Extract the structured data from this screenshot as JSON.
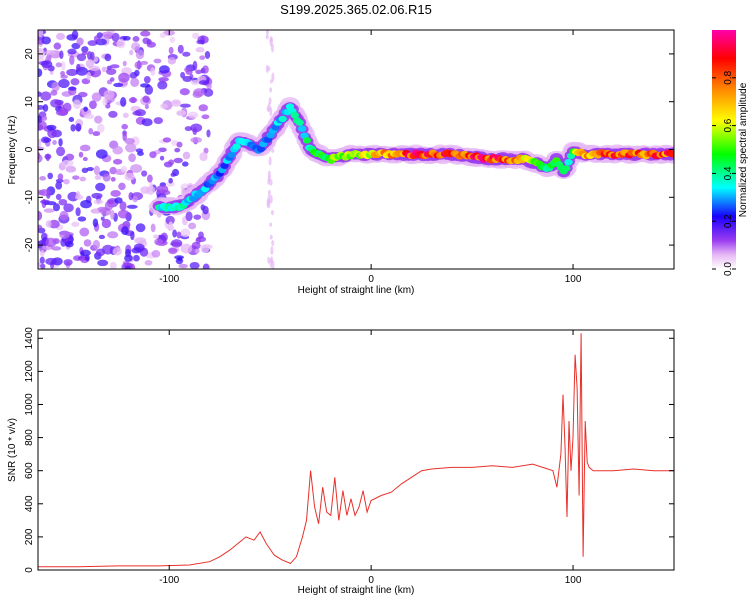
{
  "chart_data": [
    {
      "type": "heatmap",
      "title": "S199.2025.365.02.06.R15",
      "xlabel": "Height of straight line (km)",
      "ylabel": "Frequency (Hz)",
      "xlim": [
        -165,
        150
      ],
      "ylim": [
        -25,
        25
      ],
      "xticks": [
        -100,
        0,
        100
      ],
      "yticks": [
        -20,
        -10,
        0,
        10,
        20
      ],
      "colorbar": {
        "label": "Normalized spectral amplitude",
        "range": [
          0,
          1
        ],
        "ticks": [
          "0.0",
          "0.2",
          "0.4",
          "0.6",
          "0.8"
        ],
        "tick_values": [
          0.0,
          0.2,
          0.4,
          0.6,
          0.8
        ],
        "colors": [
          "#ffffff",
          "#d27cf0",
          "#8b00ff",
          "#0000ff",
          "#00ffff",
          "#00ff00",
          "#ffff00",
          "#ff8000",
          "#ff0000",
          "#ff00aa"
        ]
      },
      "ridge": {
        "x": [
          -105,
          -95,
          -85,
          -75,
          -65,
          -55,
          -45,
          -40,
          -35,
          -30,
          -20,
          -10,
          0,
          20,
          40,
          60,
          75,
          82,
          88,
          92,
          96,
          100,
          105,
          120,
          150
        ],
        "freq": [
          -12,
          -12,
          -9,
          -5,
          2,
          0,
          6,
          9,
          5,
          0,
          -2,
          -1,
          -1,
          -1,
          -1,
          -2,
          -2,
          -3,
          -4,
          -2,
          -5,
          0,
          -1,
          -1,
          -1
        ],
        "amplitude": [
          0.4,
          0.4,
          0.35,
          0.3,
          0.35,
          0.3,
          0.35,
          0.4,
          0.4,
          0.45,
          0.55,
          0.6,
          0.7,
          0.95,
          0.9,
          0.95,
          0.8,
          0.5,
          0.5,
          0.5,
          0.4,
          0.5,
          0.8,
          0.9,
          0.9
        ]
      }
    },
    {
      "type": "line",
      "xlabel": "Height of straight line (km)",
      "ylabel": "SNR (10 * v/v)",
      "xlim": [
        -165,
        150
      ],
      "ylim": [
        0,
        1450
      ],
      "xticks": [
        -100,
        0,
        100
      ],
      "yticks": [
        0,
        200,
        400,
        600,
        800,
        1000,
        1200,
        1400
      ],
      "series": [
        {
          "name": "SNR",
          "color": "#e8302a",
          "x": [
            -165,
            -145,
            -125,
            -105,
            -90,
            -80,
            -75,
            -70,
            -65,
            -62,
            -58,
            -55,
            -52,
            -48,
            -44,
            -40,
            -37,
            -34,
            -32,
            -30,
            -28,
            -26,
            -24,
            -22,
            -20,
            -18,
            -16,
            -14,
            -12,
            -10,
            -8,
            -6,
            -4,
            -2,
            0,
            5,
            10,
            15,
            20,
            25,
            30,
            40,
            50,
            60,
            70,
            80,
            85,
            90,
            92,
            94,
            95,
            96,
            97,
            98,
            99,
            100,
            101,
            102,
            103,
            104,
            105,
            106,
            107,
            108,
            110,
            120,
            130,
            140,
            150
          ],
          "y": [
            20,
            20,
            25,
            25,
            30,
            50,
            80,
            120,
            170,
            200,
            180,
            230,
            160,
            90,
            60,
            40,
            80,
            200,
            300,
            600,
            380,
            280,
            500,
            350,
            330,
            560,
            300,
            480,
            330,
            430,
            330,
            380,
            480,
            350,
            420,
            450,
            470,
            520,
            560,
            600,
            610,
            620,
            620,
            630,
            620,
            640,
            620,
            600,
            500,
            700,
            1060,
            750,
            320,
            900,
            600,
            800,
            1300,
            1100,
            450,
            1430,
            80,
            900,
            650,
            620,
            600,
            600,
            610,
            600,
            600
          ]
        }
      ]
    }
  ]
}
